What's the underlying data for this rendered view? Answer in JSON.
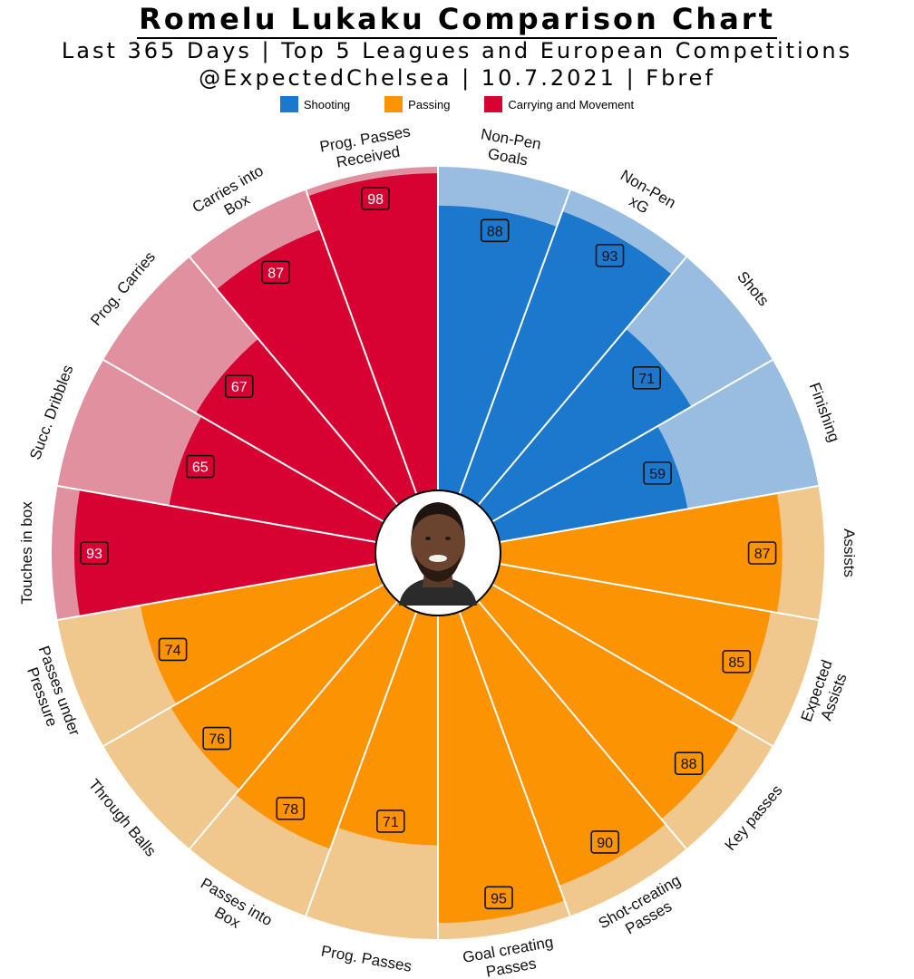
{
  "header": {
    "title": "Romelu Lukaku Comparison Chart",
    "subtitle1": "Last 365 Days | Top 5 Leagues and European Competitions",
    "subtitle2": "@ExpectedChelsea | 10.7.2021 | Fbref"
  },
  "legend": [
    {
      "label": "Shooting",
      "color": "#1b78cd"
    },
    {
      "label": "Passing",
      "color": "#fc9302"
    },
    {
      "label": "Carrying and Movement",
      "color": "#d70232"
    }
  ],
  "center_image": "player-photo",
  "chart_data": {
    "type": "bar",
    "layout": "polar",
    "range": [
      0,
      100
    ],
    "groups": {
      "Shooting": {
        "color": "#1b78cd",
        "light": "#98bde0"
      },
      "Passing": {
        "color": "#fc9302",
        "light": "#f0c78d"
      },
      "Carrying and Movement": {
        "color": "#d70232",
        "light": "#e0909e"
      }
    },
    "categories": [
      {
        "label": "Non-Pen\nGoals",
        "value": 88,
        "group": "Shooting"
      },
      {
        "label": "Non-Pen\nxG",
        "value": 93,
        "group": "Shooting"
      },
      {
        "label": "Shots",
        "value": 71,
        "group": "Shooting"
      },
      {
        "label": "Finishing",
        "value": 59,
        "group": "Shooting"
      },
      {
        "label": "Assists",
        "value": 87,
        "group": "Passing"
      },
      {
        "label": "Expected\nAssists",
        "value": 85,
        "group": "Passing"
      },
      {
        "label": "Key passes",
        "value": 88,
        "group": "Passing"
      },
      {
        "label": "Shot-creating\nPasses",
        "value": 90,
        "group": "Passing"
      },
      {
        "label": "Goal creating\nPasses",
        "value": 95,
        "group": "Passing"
      },
      {
        "label": "Prog. Passes",
        "value": 71,
        "group": "Passing"
      },
      {
        "label": "Passes into\nBox",
        "value": 78,
        "group": "Passing"
      },
      {
        "label": "Through Balls",
        "value": 76,
        "group": "Passing"
      },
      {
        "label": "Passes under\nPressure",
        "value": 74,
        "group": "Passing"
      },
      {
        "label": "Touches in box",
        "value": 93,
        "group": "Carrying and Movement"
      },
      {
        "label": "Succ. Dribbles",
        "value": 65,
        "group": "Carrying and Movement"
      },
      {
        "label": "Prog. Carries",
        "value": 67,
        "group": "Carrying and Movement"
      },
      {
        "label": "Carries into\nBox",
        "value": 87,
        "group": "Carrying and Movement"
      },
      {
        "label": "Prog. Passes\nReceived",
        "value": 98,
        "group": "Carrying and Movement"
      }
    ]
  }
}
